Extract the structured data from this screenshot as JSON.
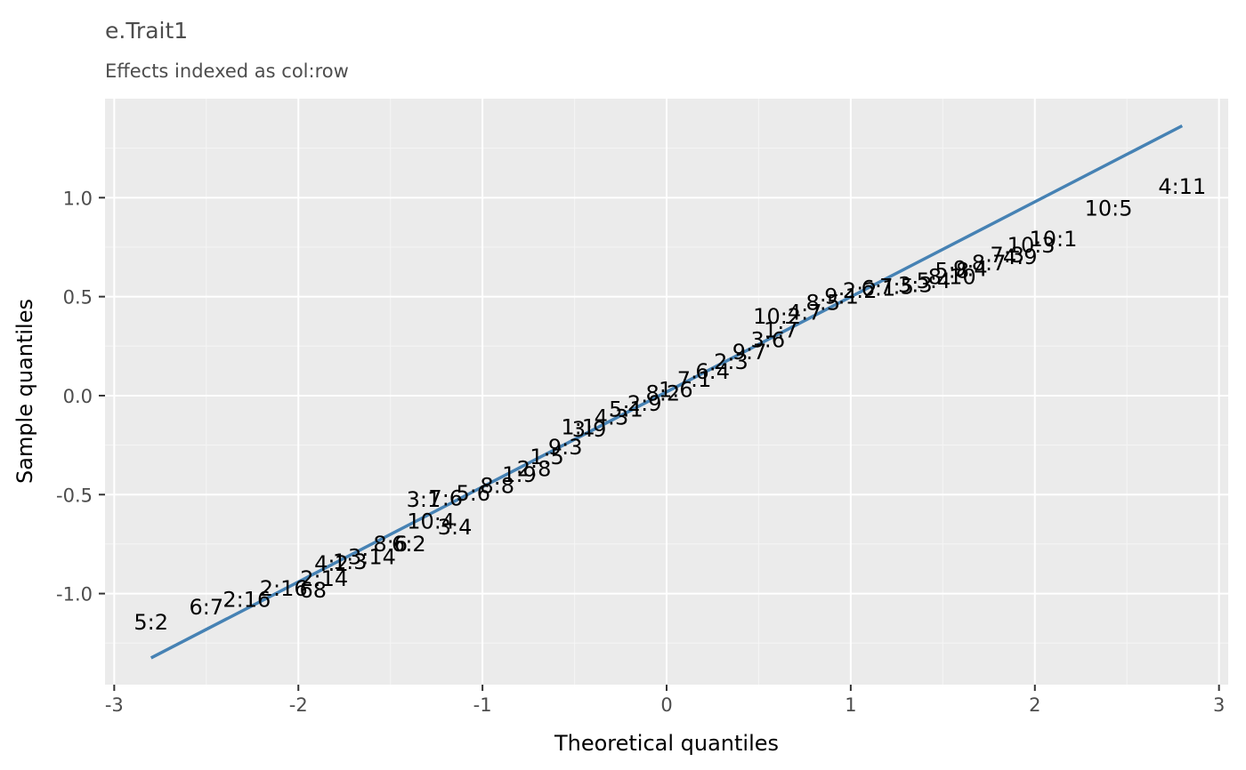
{
  "colors": {
    "panel_background": "#EBEBEB",
    "grid_major": "#FFFFFF",
    "grid_minor": "#F5F5F5",
    "reference_line": "#4682B4",
    "label_text": "#000000"
  },
  "chart_data": {
    "type": "scatter",
    "title": "e.Trait1",
    "subtitle": "Effects indexed as col:row",
    "xlabel": "Theoretical quantiles",
    "ylabel": "Sample quantiles",
    "xlim": [
      -3.05,
      3.05
    ],
    "ylim": [
      -1.46,
      1.5
    ],
    "x_ticks": [
      -3,
      -2,
      -1,
      0,
      1,
      2,
      3
    ],
    "x_tick_labels": [
      "-3",
      "-2",
      "-1",
      "0",
      "1",
      "2",
      "3"
    ],
    "y_ticks": [
      -1.0,
      -0.5,
      0.0,
      0.5,
      1.0
    ],
    "y_tick_labels": [
      "-1.0",
      "-0.5",
      "0.0",
      "0.5",
      "1.0"
    ],
    "grid": true,
    "reference_line": {
      "x": [
        -2.8,
        2.8
      ],
      "y": [
        -1.325,
        1.363
      ]
    },
    "labeled_points": [
      {
        "label": "5:2",
        "x": -2.8,
        "y": -1.145
      },
      {
        "label": "6:7",
        "x": -2.5,
        "y": -1.07
      },
      {
        "label": "2:16",
        "x": -2.28,
        "y": -1.03
      },
      {
        "label": "2:16",
        "x": -2.08,
        "y": -0.975
      },
      {
        "label": "68",
        "x": -1.92,
        "y": -0.985
      },
      {
        "label": "2:14",
        "x": -1.86,
        "y": -0.925
      },
      {
        "label": "4:2",
        "x": -1.82,
        "y": -0.85
      },
      {
        "label": "1:3",
        "x": -1.72,
        "y": -0.84
      },
      {
        "label": "3:14",
        "x": -1.6,
        "y": -0.815
      },
      {
        "label": "8:6",
        "x": -1.5,
        "y": -0.75
      },
      {
        "label": "6:2",
        "x": -1.4,
        "y": -0.75
      },
      {
        "label": "10:4",
        "x": -1.28,
        "y": -0.635
      },
      {
        "label": "3:4",
        "x": -1.15,
        "y": -0.665
      },
      {
        "label": "3:1",
        "x": -1.32,
        "y": -0.525
      },
      {
        "label": "7:6",
        "x": -1.2,
        "y": -0.52
      },
      {
        "label": "5:6",
        "x": -1.05,
        "y": -0.495
      },
      {
        "label": "8:8",
        "x": -0.92,
        "y": -0.455
      },
      {
        "label": "1:9",
        "x": -0.8,
        "y": -0.4
      },
      {
        "label": "2:8",
        "x": -0.72,
        "y": -0.37
      },
      {
        "label": "1:5",
        "x": -0.65,
        "y": -0.31
      },
      {
        "label": "9:3",
        "x": -0.55,
        "y": -0.26
      },
      {
        "label": "1:1",
        "x": -0.48,
        "y": -0.16
      },
      {
        "label": "3:9",
        "x": -0.42,
        "y": -0.17
      },
      {
        "label": "4:3",
        "x": -0.3,
        "y": -0.11
      },
      {
        "label": "5:1",
        "x": -0.22,
        "y": -0.07
      },
      {
        "label": "2:9",
        "x": -0.12,
        "y": -0.04
      },
      {
        "label": "8:2",
        "x": -0.02,
        "y": 0.01
      },
      {
        "label": "1:6",
        "x": 0.05,
        "y": 0.03
      },
      {
        "label": "7:1",
        "x": 0.15,
        "y": 0.08
      },
      {
        "label": "6:4",
        "x": 0.25,
        "y": 0.12
      },
      {
        "label": "2:3",
        "x": 0.35,
        "y": 0.17
      },
      {
        "label": "9:7",
        "x": 0.45,
        "y": 0.22
      },
      {
        "label": "3:6",
        "x": 0.55,
        "y": 0.28
      },
      {
        "label": "1:7",
        "x": 0.62,
        "y": 0.33
      },
      {
        "label": "10:2",
        "x": 0.6,
        "y": 0.4
      },
      {
        "label": "4:7",
        "x": 0.75,
        "y": 0.42
      },
      {
        "label": "8:5",
        "x": 0.85,
        "y": 0.47
      },
      {
        "label": "9:1",
        "x": 0.95,
        "y": 0.5
      },
      {
        "label": "2:2",
        "x": 1.05,
        "y": 0.53
      },
      {
        "label": "6:1",
        "x": 1.15,
        "y": 0.54
      },
      {
        "label": "7:5",
        "x": 1.25,
        "y": 0.55
      },
      {
        "label": "3:3",
        "x": 1.35,
        "y": 0.56
      },
      {
        "label": "5:4",
        "x": 1.45,
        "y": 0.58
      },
      {
        "label": "8:10",
        "x": 1.55,
        "y": 0.6
      },
      {
        "label": "5:8",
        "x": 1.55,
        "y": 0.63
      },
      {
        "label": "9:4",
        "x": 1.65,
        "y": 0.64
      },
      {
        "label": "8:7",
        "x": 1.75,
        "y": 0.67
      },
      {
        "label": "7:3",
        "x": 1.85,
        "y": 0.71
      },
      {
        "label": "4:9",
        "x": 1.92,
        "y": 0.7
      },
      {
        "label": "10:3",
        "x": 1.98,
        "y": 0.76
      },
      {
        "label": "10:1",
        "x": 2.1,
        "y": 0.79
      },
      {
        "label": "10:5",
        "x": 2.4,
        "y": 0.945
      },
      {
        "label": "4:11",
        "x": 2.8,
        "y": 1.055
      }
    ]
  }
}
